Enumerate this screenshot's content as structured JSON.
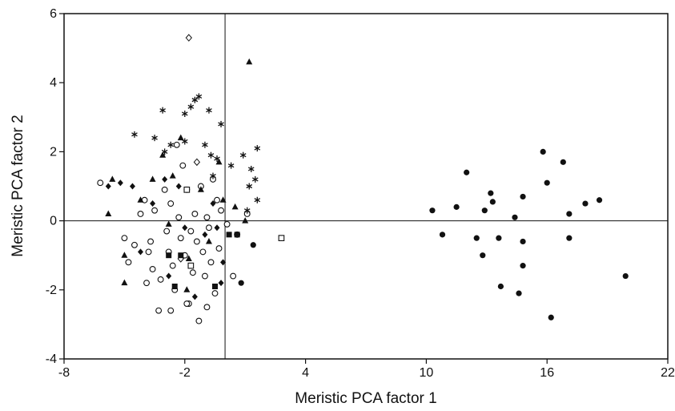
{
  "chart_data": {
    "type": "scatter",
    "title": "",
    "xlabel": "Meristic PCA factor 1",
    "ylabel": "Meristic PCA factor 2",
    "xlim": [
      -8,
      22
    ],
    "ylim": [
      -4,
      6
    ],
    "xticks": [
      "-8",
      "-2",
      "4",
      "10",
      "16",
      "22"
    ],
    "yticks": [
      "6",
      "4",
      "2",
      "0",
      "-2",
      "-4"
    ],
    "reference_lines": {
      "x": 0,
      "y": 0
    },
    "grid": false,
    "legend": "none",
    "series": [
      {
        "marker": "filled-circle",
        "points": [
          [
            10.3,
            0.3
          ],
          [
            10.8,
            -0.4
          ],
          [
            11.5,
            0.4
          ],
          [
            12.0,
            1.4
          ],
          [
            12.5,
            -0.5
          ],
          [
            12.8,
            -1.0
          ],
          [
            12.9,
            0.3
          ],
          [
            13.2,
            0.8
          ],
          [
            13.3,
            0.55
          ],
          [
            13.6,
            -0.5
          ],
          [
            13.7,
            -1.9
          ],
          [
            14.4,
            0.1
          ],
          [
            14.6,
            -2.1
          ],
          [
            14.8,
            0.7
          ],
          [
            14.8,
            -1.3
          ],
          [
            14.8,
            -0.6
          ],
          [
            15.8,
            2.0
          ],
          [
            16.0,
            1.1
          ],
          [
            16.2,
            -2.8
          ],
          [
            16.8,
            1.7
          ],
          [
            17.1,
            0.2
          ],
          [
            17.1,
            -0.5
          ],
          [
            17.9,
            0.5
          ],
          [
            18.6,
            0.6
          ],
          [
            19.9,
            -1.6
          ],
          [
            0.8,
            -1.8
          ],
          [
            1.4,
            -0.7
          ]
        ]
      },
      {
        "marker": "open-circle",
        "points": [
          [
            -6.2,
            1.1
          ],
          [
            -5.0,
            -0.5
          ],
          [
            -4.8,
            -1.2
          ],
          [
            -4.5,
            -0.7
          ],
          [
            -4.2,
            0.2
          ],
          [
            -4.0,
            0.6
          ],
          [
            -3.8,
            -0.9
          ],
          [
            -3.7,
            -0.6
          ],
          [
            -3.6,
            -1.4
          ],
          [
            -3.5,
            0.3
          ],
          [
            -3.3,
            -2.6
          ],
          [
            -3.2,
            -1.7
          ],
          [
            -3.0,
            0.9
          ],
          [
            -2.9,
            -0.3
          ],
          [
            -2.8,
            -0.9
          ],
          [
            -2.7,
            0.5
          ],
          [
            -2.6,
            -1.3
          ],
          [
            -2.5,
            -2.0
          ],
          [
            -2.4,
            2.2
          ],
          [
            -2.3,
            0.1
          ],
          [
            -2.2,
            -0.5
          ],
          [
            -2.1,
            1.6
          ],
          [
            -2.0,
            -1.0
          ],
          [
            -1.9,
            0.9
          ],
          [
            -1.8,
            -2.4
          ],
          [
            -1.7,
            -0.3
          ],
          [
            -1.6,
            -1.5
          ],
          [
            -1.5,
            0.2
          ],
          [
            -1.4,
            -0.6
          ],
          [
            -1.3,
            -2.9
          ],
          [
            -1.2,
            1.0
          ],
          [
            -1.1,
            -0.9
          ],
          [
            -1.0,
            -1.6
          ],
          [
            -0.9,
            0.1
          ],
          [
            -0.8,
            -0.2
          ],
          [
            -0.7,
            -1.2
          ],
          [
            -0.6,
            1.2
          ],
          [
            -0.5,
            -2.1
          ],
          [
            -0.4,
            0.6
          ],
          [
            -0.3,
            -0.8
          ],
          [
            -0.2,
            0.3
          ],
          [
            0.1,
            -0.1
          ],
          [
            0.4,
            -1.6
          ],
          [
            0.6,
            -0.4
          ],
          [
            1.1,
            0.2
          ],
          [
            -2.7,
            -2.6
          ],
          [
            -1.9,
            -2.4
          ],
          [
            -0.9,
            -2.5
          ],
          [
            -3.9,
            -1.8
          ]
        ]
      },
      {
        "marker": "filled-triangle",
        "points": [
          [
            -5.6,
            1.2
          ],
          [
            -5.8,
            0.2
          ],
          [
            -5.0,
            -1.0
          ],
          [
            -5.0,
            -1.8
          ],
          [
            -4.2,
            0.6
          ],
          [
            -3.6,
            1.2
          ],
          [
            -3.1,
            1.9
          ],
          [
            -2.8,
            -0.1
          ],
          [
            -2.6,
            1.3
          ],
          [
            -2.2,
            2.4
          ],
          [
            -1.8,
            -1.1
          ],
          [
            -1.2,
            0.9
          ],
          [
            -0.8,
            -0.6
          ],
          [
            -0.3,
            1.7
          ],
          [
            -0.1,
            0.6
          ],
          [
            0.5,
            0.4
          ],
          [
            1.0,
            0.0
          ],
          [
            1.2,
            4.6
          ],
          [
            -1.9,
            -2.0
          ]
        ]
      },
      {
        "marker": "filled-diamond",
        "points": [
          [
            -5.8,
            1.0
          ],
          [
            -5.2,
            1.1
          ],
          [
            -4.6,
            1.0
          ],
          [
            -4.2,
            -0.9
          ],
          [
            -3.6,
            0.5
          ],
          [
            -3.0,
            1.2
          ],
          [
            -2.8,
            -1.6
          ],
          [
            -2.3,
            1.0
          ],
          [
            -2.0,
            -0.2
          ],
          [
            -1.5,
            -2.2
          ],
          [
            -1.0,
            -0.4
          ],
          [
            -0.6,
            0.5
          ],
          [
            -0.4,
            -0.2
          ],
          [
            -0.1,
            -1.2
          ],
          [
            -0.2,
            -1.8
          ]
        ]
      },
      {
        "marker": "open-diamond",
        "points": [
          [
            -1.8,
            5.3
          ],
          [
            -1.4,
            1.7
          ],
          [
            -2.2,
            -1.1
          ]
        ]
      },
      {
        "marker": "asterisk",
        "points": [
          [
            -4.5,
            2.5
          ],
          [
            -3.5,
            2.4
          ],
          [
            -3.1,
            3.2
          ],
          [
            -3.0,
            2.0
          ],
          [
            -2.7,
            2.2
          ],
          [
            -2.0,
            2.3
          ],
          [
            -2.0,
            3.1
          ],
          [
            -1.7,
            3.3
          ],
          [
            -1.5,
            3.5
          ],
          [
            -1.3,
            3.6
          ],
          [
            -1.0,
            2.2
          ],
          [
            -0.8,
            3.2
          ],
          [
            -0.6,
            1.3
          ],
          [
            -0.4,
            1.8
          ],
          [
            -0.2,
            2.8
          ],
          [
            0.3,
            1.6
          ],
          [
            0.9,
            1.9
          ],
          [
            1.2,
            1.0
          ],
          [
            1.5,
            1.2
          ],
          [
            1.6,
            2.1
          ],
          [
            1.3,
            1.5
          ],
          [
            -0.7,
            1.9
          ],
          [
            1.1,
            0.3
          ],
          [
            1.6,
            0.6
          ]
        ]
      },
      {
        "marker": "filled-square",
        "points": [
          [
            -2.8,
            -1.0
          ],
          [
            -2.2,
            -1.0
          ],
          [
            0.2,
            -0.4
          ],
          [
            0.6,
            -0.4
          ],
          [
            -2.5,
            -1.9
          ],
          [
            -0.5,
            -1.9
          ]
        ]
      },
      {
        "marker": "open-square",
        "points": [
          [
            -1.9,
            0.9
          ],
          [
            2.8,
            -0.5
          ],
          [
            -1.7,
            -1.3
          ]
        ]
      }
    ]
  }
}
